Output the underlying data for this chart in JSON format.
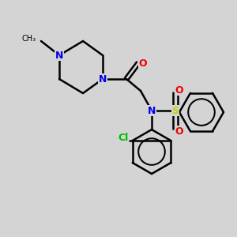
{
  "background_color": "#d4d4d4",
  "bond_color": "#000000",
  "bond_width": 1.8,
  "atom_colors": {
    "N": "#0000ee",
    "O": "#ee0000",
    "S": "#cccc00",
    "Cl": "#00bb00",
    "C": "#000000"
  },
  "font_size_atom": 9,
  "font_size_methyl": 8
}
